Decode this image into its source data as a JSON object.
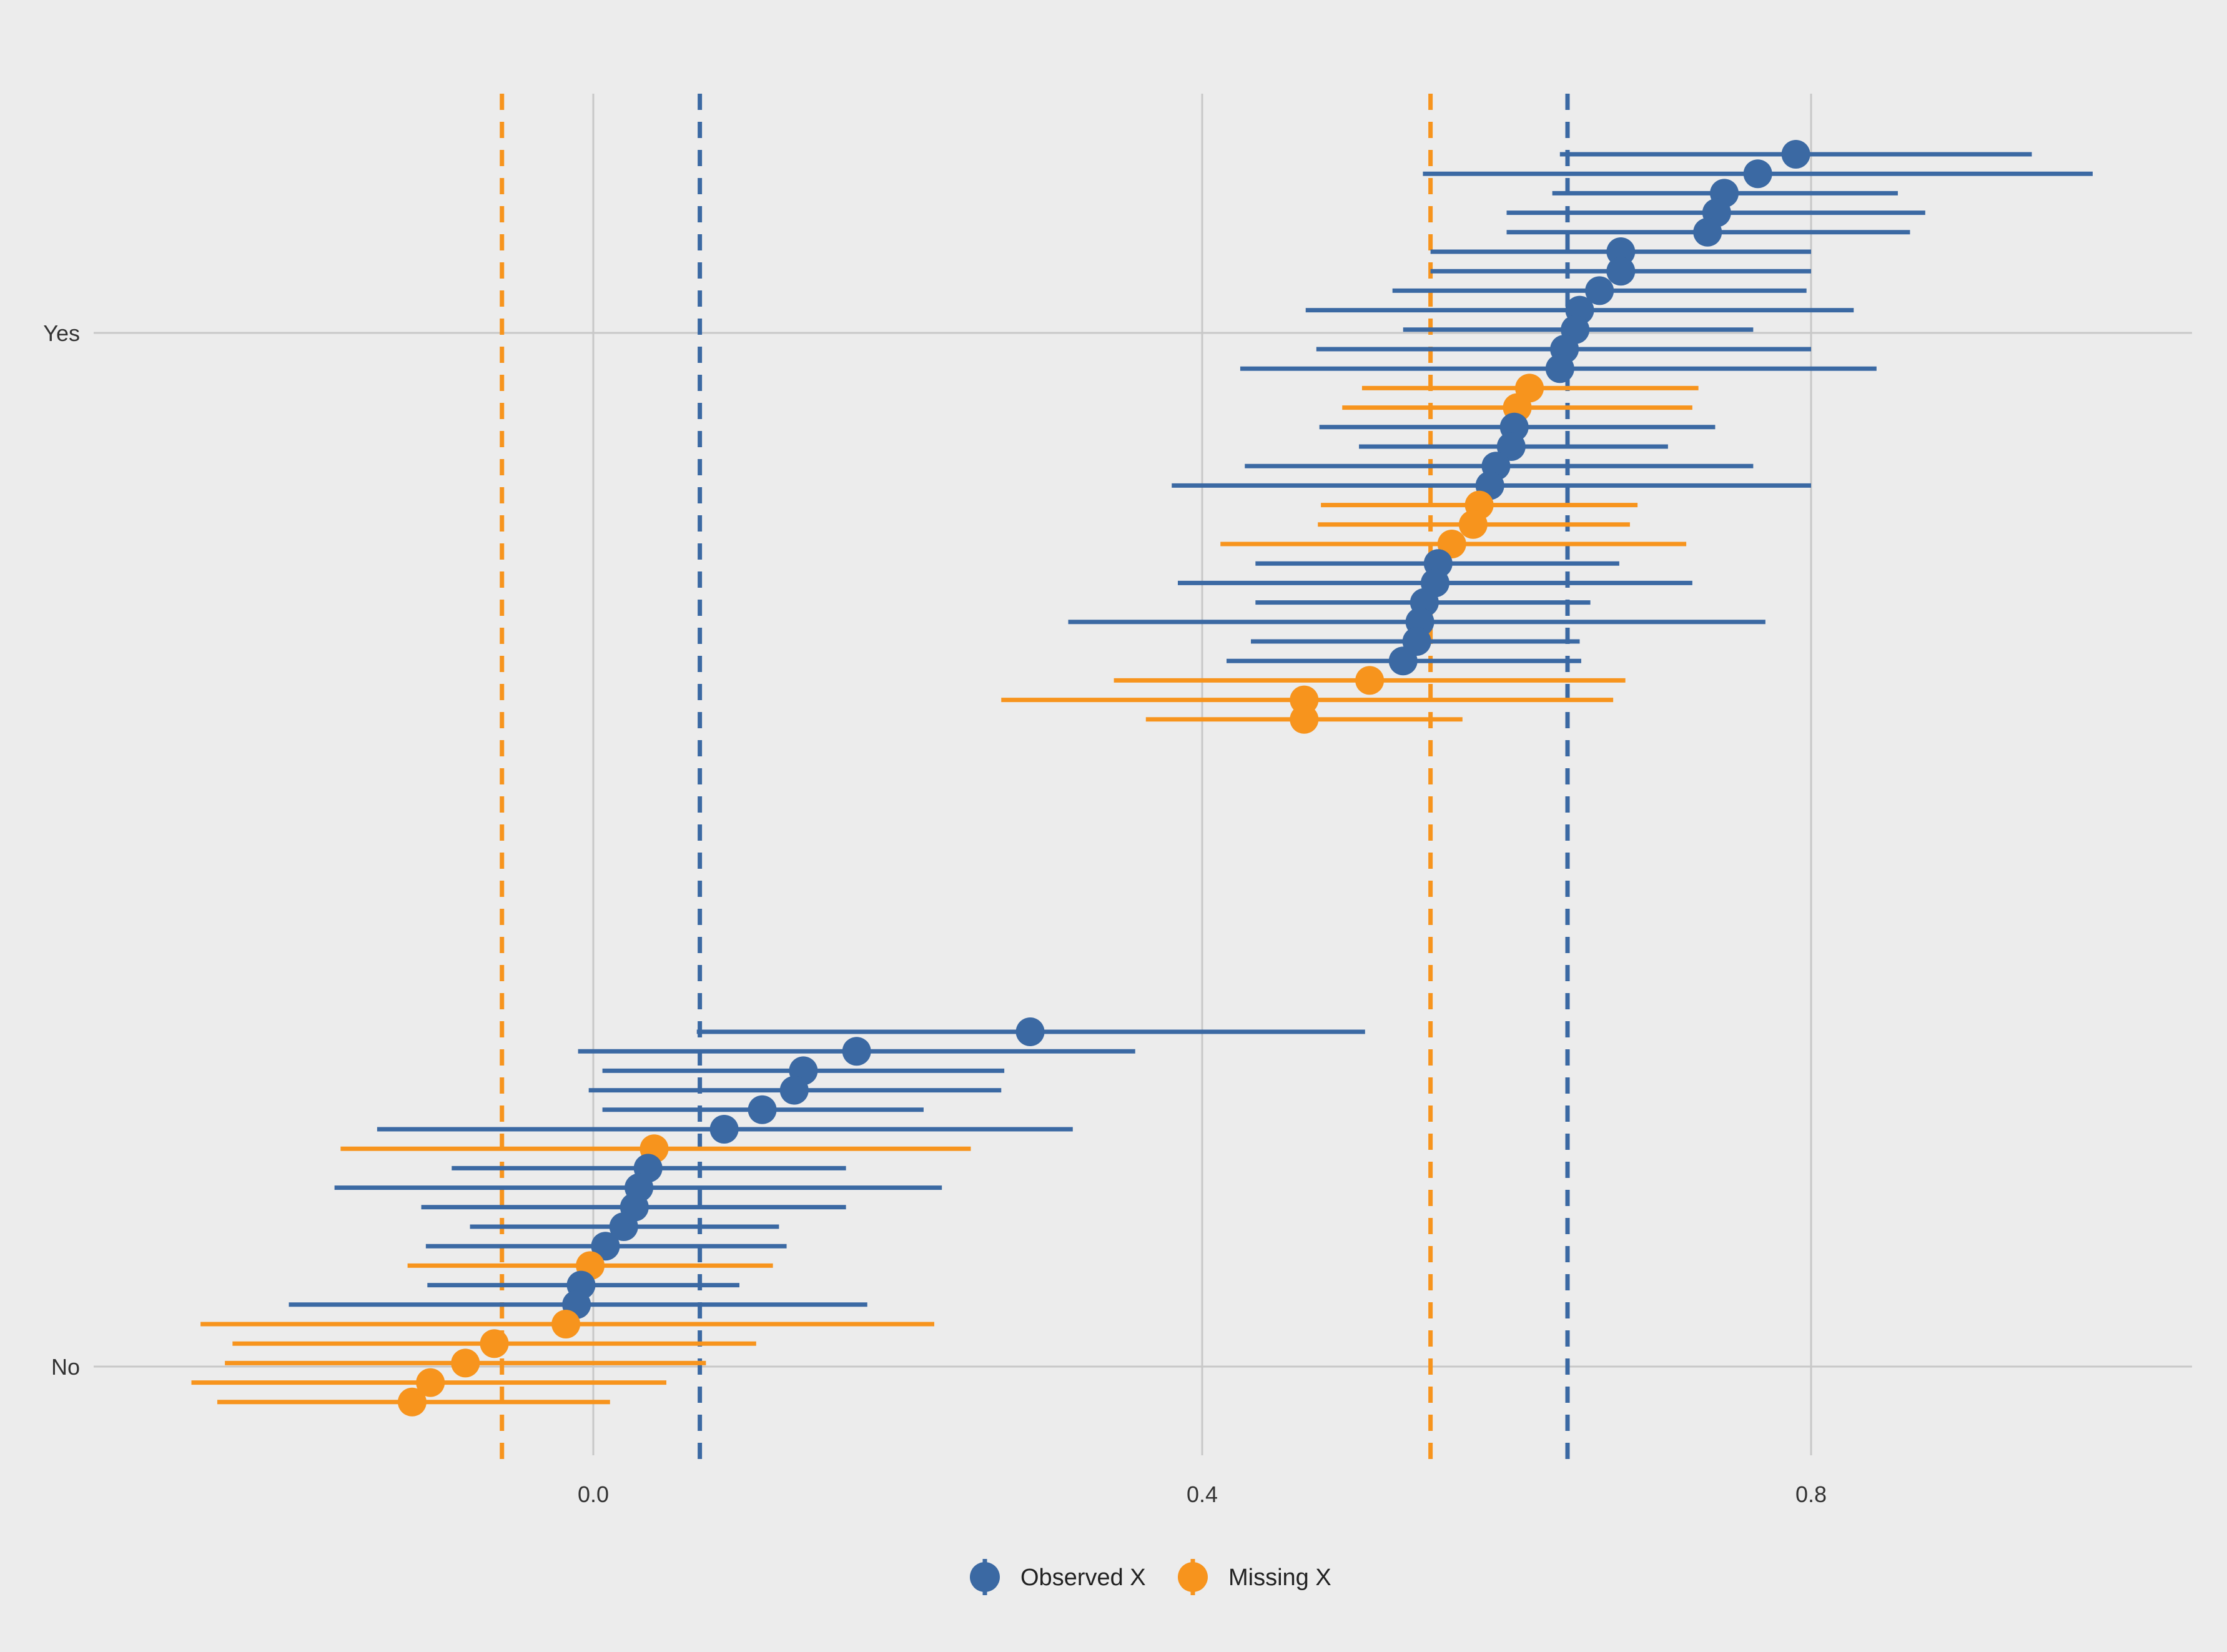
{
  "chart_data": {
    "type": "scatter",
    "subtype": "dot-and-interval (forest) plot",
    "title": "",
    "xlabel": "",
    "ylabel": "",
    "xlim": [
      -0.33,
      1.05
    ],
    "x_ticks": [
      0.0,
      0.4,
      0.8
    ],
    "x_tick_labels": [
      "0.0",
      "0.4",
      "0.8"
    ],
    "y_categories": [
      "No",
      "Yes"
    ],
    "grid": true,
    "legend_position": "bottom",
    "colors": {
      "observed": "#3b69a3",
      "missing": "#f7941d",
      "background": "#ececec",
      "grid": "#c8c8c8"
    },
    "legend": [
      {
        "key": "observed",
        "label": "Observed X"
      },
      {
        "key": "missing",
        "label": "Missing X"
      }
    ],
    "reference_lines": [
      {
        "series": "missing",
        "x": -0.06
      },
      {
        "series": "observed",
        "x": 0.07
      },
      {
        "series": "missing",
        "x": 0.55
      },
      {
        "series": "observed",
        "x": 0.64
      }
    ],
    "groups": [
      {
        "category": "Yes",
        "points": [
          {
            "series": "observed",
            "x": 0.79,
            "lo": 0.635,
            "hi": 0.945
          },
          {
            "series": "observed",
            "x": 0.765,
            "lo": 0.545,
            "hi": 0.985
          },
          {
            "series": "observed",
            "x": 0.743,
            "lo": 0.63,
            "hi": 0.857
          },
          {
            "series": "observed",
            "x": 0.738,
            "lo": 0.6,
            "hi": 0.875
          },
          {
            "series": "observed",
            "x": 0.732,
            "lo": 0.6,
            "hi": 0.865
          },
          {
            "series": "observed",
            "x": 0.675,
            "lo": 0.55,
            "hi": 0.8
          },
          {
            "series": "observed",
            "x": 0.675,
            "lo": 0.55,
            "hi": 0.8
          },
          {
            "series": "observed",
            "x": 0.661,
            "lo": 0.525,
            "hi": 0.797
          },
          {
            "series": "observed",
            "x": 0.648,
            "lo": 0.468,
            "hi": 0.828
          },
          {
            "series": "observed",
            "x": 0.645,
            "lo": 0.532,
            "hi": 0.762
          },
          {
            "series": "observed",
            "x": 0.638,
            "lo": 0.475,
            "hi": 0.8
          },
          {
            "series": "observed",
            "x": 0.635,
            "lo": 0.425,
            "hi": 0.843
          },
          {
            "series": "missing",
            "x": 0.615,
            "lo": 0.505,
            "hi": 0.726
          },
          {
            "series": "missing",
            "x": 0.607,
            "lo": 0.492,
            "hi": 0.722
          },
          {
            "series": "observed",
            "x": 0.605,
            "lo": 0.477,
            "hi": 0.737
          },
          {
            "series": "observed",
            "x": 0.603,
            "lo": 0.503,
            "hi": 0.706
          },
          {
            "series": "observed",
            "x": 0.593,
            "lo": 0.428,
            "hi": 0.762
          },
          {
            "series": "observed",
            "x": 0.589,
            "lo": 0.38,
            "hi": 0.8
          },
          {
            "series": "missing",
            "x": 0.582,
            "lo": 0.478,
            "hi": 0.686
          },
          {
            "series": "missing",
            "x": 0.578,
            "lo": 0.476,
            "hi": 0.681
          },
          {
            "series": "missing",
            "x": 0.564,
            "lo": 0.412,
            "hi": 0.718
          },
          {
            "series": "observed",
            "x": 0.555,
            "lo": 0.435,
            "hi": 0.674
          },
          {
            "series": "observed",
            "x": 0.553,
            "lo": 0.384,
            "hi": 0.722
          },
          {
            "series": "observed",
            "x": 0.546,
            "lo": 0.435,
            "hi": 0.655
          },
          {
            "series": "observed",
            "x": 0.543,
            "lo": 0.312,
            "hi": 0.77
          },
          {
            "series": "observed",
            "x": 0.541,
            "lo": 0.432,
            "hi": 0.648
          },
          {
            "series": "observed",
            "x": 0.532,
            "lo": 0.416,
            "hi": 0.649
          },
          {
            "series": "missing",
            "x": 0.51,
            "lo": 0.342,
            "hi": 0.678
          },
          {
            "series": "missing",
            "x": 0.467,
            "lo": 0.268,
            "hi": 0.67
          },
          {
            "series": "missing",
            "x": 0.467,
            "lo": 0.363,
            "hi": 0.571
          }
        ]
      },
      {
        "category": "No",
        "points": [
          {
            "series": "observed",
            "x": 0.287,
            "lo": 0.068,
            "hi": 0.507
          },
          {
            "series": "observed",
            "x": 0.173,
            "lo": -0.01,
            "hi": 0.356
          },
          {
            "series": "observed",
            "x": 0.138,
            "lo": 0.006,
            "hi": 0.27
          },
          {
            "series": "observed",
            "x": 0.132,
            "lo": -0.003,
            "hi": 0.268
          },
          {
            "series": "observed",
            "x": 0.111,
            "lo": 0.006,
            "hi": 0.217
          },
          {
            "series": "observed",
            "x": 0.086,
            "lo": -0.142,
            "hi": 0.315
          },
          {
            "series": "missing",
            "x": 0.04,
            "lo": -0.166,
            "hi": 0.248
          },
          {
            "series": "observed",
            "x": 0.036,
            "lo": -0.093,
            "hi": 0.166
          },
          {
            "series": "observed",
            "x": 0.03,
            "lo": -0.17,
            "hi": 0.229
          },
          {
            "series": "observed",
            "x": 0.027,
            "lo": -0.113,
            "hi": 0.166
          },
          {
            "series": "observed",
            "x": 0.02,
            "lo": -0.081,
            "hi": 0.122
          },
          {
            "series": "observed",
            "x": 0.008,
            "lo": -0.11,
            "hi": 0.127
          },
          {
            "series": "missing",
            "x": -0.002,
            "lo": -0.122,
            "hi": 0.118
          },
          {
            "series": "observed",
            "x": -0.008,
            "lo": -0.109,
            "hi": 0.096
          },
          {
            "series": "observed",
            "x": -0.011,
            "lo": -0.2,
            "hi": 0.18
          },
          {
            "series": "missing",
            "x": -0.018,
            "lo": -0.258,
            "hi": 0.224
          },
          {
            "series": "missing",
            "x": -0.065,
            "lo": -0.237,
            "hi": 0.107
          },
          {
            "series": "missing",
            "x": -0.084,
            "lo": -0.242,
            "hi": 0.074
          },
          {
            "series": "missing",
            "x": -0.107,
            "lo": -0.264,
            "hi": 0.048
          },
          {
            "series": "missing",
            "x": -0.119,
            "lo": -0.247,
            "hi": 0.011
          }
        ]
      }
    ]
  }
}
